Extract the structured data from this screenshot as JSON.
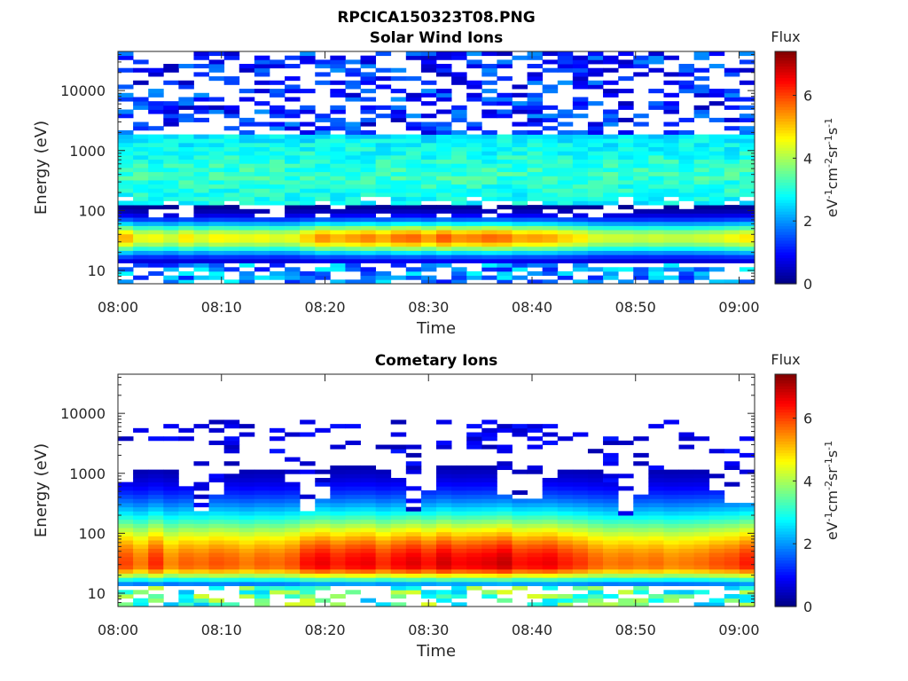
{
  "figure_title": "RPCICA150323T08.PNG",
  "chart_data": [
    {
      "type": "heatmap",
      "title": "Solar Wind Ions",
      "xlabel": "Time",
      "ylabel": "Energy (eV)",
      "x_ticks": [
        "08:00",
        "08:10",
        "08:20",
        "08:30",
        "08:40",
        "08:50",
        "09:00"
      ],
      "y_ticks": [
        "10",
        "100",
        "1000",
        "10000"
      ],
      "y_scale": "log",
      "ylim": [
        6,
        45000
      ],
      "xlim": [
        "08:00",
        "09:00"
      ],
      "colorbar": {
        "label": "Flux",
        "units_label": "eV-1cm-2sr-1s-1",
        "ticks": [
          0,
          2,
          4,
          6
        ],
        "range": [
          0,
          7.4
        ],
        "colormap": "jet"
      },
      "profile": {
        "low_peak_energy_eV": 35,
        "low_peak_flux": [
          5.2,
          4.5,
          4.6,
          4.3,
          4.8,
          4.4,
          4.7,
          4.6,
          4.5,
          4.6,
          4.4,
          4.5,
          5.0,
          5.5,
          5.2,
          5.4,
          5.6,
          5.3,
          5.7,
          5.8,
          5.4,
          5.9,
          5.5,
          5.6,
          5.8,
          5.7,
          5.3,
          5.4,
          5.3,
          5.0,
          4.8,
          4.4,
          4.3,
          4.3,
          4.2,
          4.3,
          4.2,
          4.2,
          4.3,
          4.4,
          4.6,
          4.8
        ],
        "high_band_energy_eV": [
          150,
          1500
        ],
        "high_band_flux": 2.8
      }
    },
    {
      "type": "heatmap",
      "title": "Cometary Ions",
      "xlabel": "Time",
      "ylabel": "Energy (eV)",
      "x_ticks": [
        "08:00",
        "08:10",
        "08:20",
        "08:30",
        "08:40",
        "08:50",
        "09:00"
      ],
      "y_ticks": [
        "10",
        "100",
        "1000",
        "10000"
      ],
      "y_scale": "log",
      "ylim": [
        6,
        45000
      ],
      "xlim": [
        "08:00",
        "09:00"
      ],
      "colorbar": {
        "label": "Flux",
        "units_label": "eV-1cm-2sr-1s-1",
        "ticks": [
          0,
          2,
          4,
          6
        ],
        "range": [
          0,
          7.4
        ],
        "colormap": "jet"
      },
      "profile": {
        "peak_energy_eV": 30,
        "peak_flux": [
          6.0,
          5.6,
          6.2,
          5.5,
          5.8,
          5.7,
          5.9,
          5.8,
          5.6,
          5.8,
          5.7,
          5.9,
          6.4,
          6.6,
          6.3,
          6.5,
          6.6,
          6.2,
          6.5,
          6.7,
          6.4,
          6.8,
          6.5,
          6.6,
          6.7,
          6.9,
          6.4,
          6.5,
          6.6,
          6.3,
          6.1,
          5.8,
          5.6,
          5.7,
          5.6,
          5.7,
          5.5,
          5.6,
          5.7,
          5.9,
          6.0,
          6.3
        ],
        "upper_extent_energy_eV": [
          700,
          3000
        ]
      }
    }
  ]
}
